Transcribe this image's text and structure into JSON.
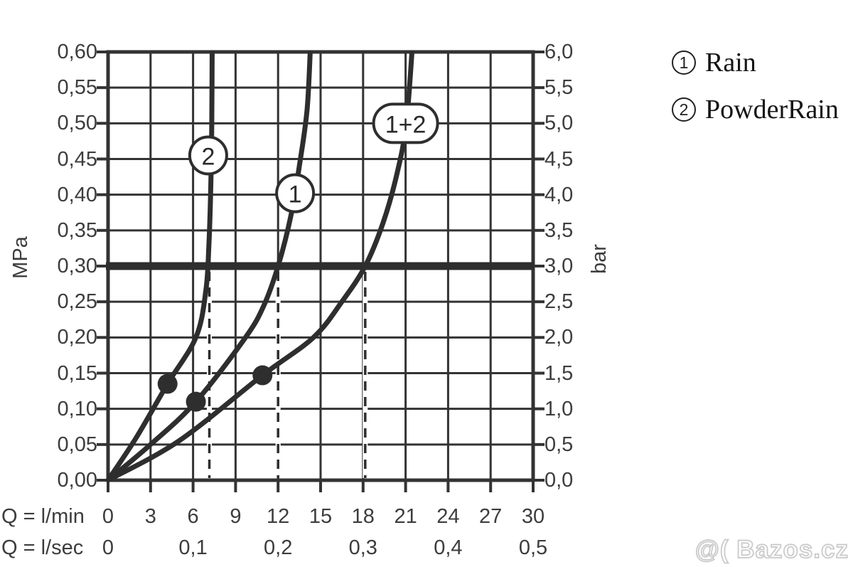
{
  "style": {
    "ink": "#333333",
    "curve_ink": "#2e2e2e",
    "text_color": "#3d3d3d",
    "watermark_color": "#c9c9c9",
    "background": "#ffffff"
  },
  "axes": {
    "left": {
      "unit": "MPa",
      "labels": [
        "0,60",
        "0,55",
        "0,50",
        "0,45",
        "0,40",
        "0,35",
        "0,30",
        "0,25",
        "0,20",
        "0,15",
        "0,10",
        "0,05",
        "0,00"
      ]
    },
    "right": {
      "unit": "bar",
      "labels": [
        "6,0",
        "5,5",
        "5,0",
        "4,5",
        "4,0",
        "3,5",
        "3,0",
        "2,5",
        "2,0",
        "1,5",
        "1,0",
        "0,5",
        "0,0"
      ]
    },
    "bottom_primary": {
      "caption": "Q = l/min",
      "ticks": [
        {
          "label": "0",
          "q": 0
        },
        {
          "label": "3",
          "q": 3
        },
        {
          "label": "6",
          "q": 6
        },
        {
          "label": "9",
          "q": 9
        },
        {
          "label": "12",
          "q": 12
        },
        {
          "label": "15",
          "q": 15
        },
        {
          "label": "18",
          "q": 18
        },
        {
          "label": "21",
          "q": 21
        },
        {
          "label": "24",
          "q": 24
        },
        {
          "label": "27",
          "q": 27
        },
        {
          "label": "30",
          "q": 30
        }
      ]
    },
    "bottom_secondary": {
      "caption": "Q = l/sec",
      "ticks": [
        {
          "label": "0",
          "q": 0
        },
        {
          "label": "0,1",
          "q": 6
        },
        {
          "label": "0,2",
          "q": 12
        },
        {
          "label": "0,3",
          "q": 18
        },
        {
          "label": "0,4",
          "q": 24
        },
        {
          "label": "0,5",
          "q": 30
        }
      ]
    }
  },
  "legend": {
    "items": [
      {
        "symbol": "1",
        "label": "Rain"
      },
      {
        "symbol": "2",
        "label": "PowderRain"
      }
    ]
  },
  "watermark": "@( Bazos.cz",
  "chart_data": {
    "type": "line",
    "x_unit_primary": "l/min",
    "x_unit_secondary": "l/sec",
    "y_unit_left": "MPa",
    "y_unit_right": "bar",
    "xlim_lmin": [
      0,
      30
    ],
    "ylim_mpa": [
      0,
      0.6
    ],
    "ylim_bar": [
      0,
      6
    ],
    "x_grid_step_lmin": 3,
    "y_grid_step_mpa": 0.05,
    "grid": true,
    "legend_position": "top-right",
    "series": [
      {
        "id": "2",
        "name": "PowderRain",
        "points_lmin_mpa": [
          [
            0,
            0
          ],
          [
            2.0,
            0.06
          ],
          [
            4.2,
            0.135
          ],
          [
            6.2,
            0.2
          ],
          [
            6.9,
            0.265
          ],
          [
            7.12,
            0.33
          ],
          [
            7.26,
            0.42
          ],
          [
            7.32,
            0.5
          ],
          [
            7.35,
            0.615
          ]
        ]
      },
      {
        "id": "1",
        "name": "Rain",
        "points_lmin_mpa": [
          [
            0,
            0
          ],
          [
            3.0,
            0.05
          ],
          [
            6.2,
            0.11
          ],
          [
            9.7,
            0.2
          ],
          [
            11.0,
            0.245
          ],
          [
            12.0,
            0.3
          ],
          [
            12.9,
            0.37
          ],
          [
            13.5,
            0.44
          ],
          [
            14.05,
            0.52
          ],
          [
            14.3,
            0.615
          ]
        ]
      },
      {
        "id": "1+2",
        "name": "Rain plus PowderRain",
        "points_lmin_mpa": [
          [
            0,
            0
          ],
          [
            5.0,
            0.055
          ],
          [
            10.9,
            0.147
          ],
          [
            14.5,
            0.2
          ],
          [
            16.5,
            0.25
          ],
          [
            18.15,
            0.3
          ],
          [
            19.4,
            0.36
          ],
          [
            20.4,
            0.43
          ],
          [
            21.05,
            0.5
          ],
          [
            21.5,
            0.615
          ]
        ]
      }
    ],
    "markers_lmin_mpa": [
      [
        4.2,
        0.135
      ],
      [
        6.2,
        0.11
      ],
      [
        10.9,
        0.147
      ]
    ],
    "reference_pressure_mpa": 0.3,
    "dashed_guides_lmin": [
      7.15,
      12,
      18.15
    ],
    "curve_labels": [
      {
        "text": "2",
        "q": 7.07,
        "p": 0.455,
        "shape": "circle"
      },
      {
        "text": "1",
        "q": 13.2,
        "p": 0.402,
        "shape": "circle"
      },
      {
        "text": "1+2",
        "q": 21.0,
        "p": 0.5,
        "shape": "pill"
      }
    ]
  }
}
